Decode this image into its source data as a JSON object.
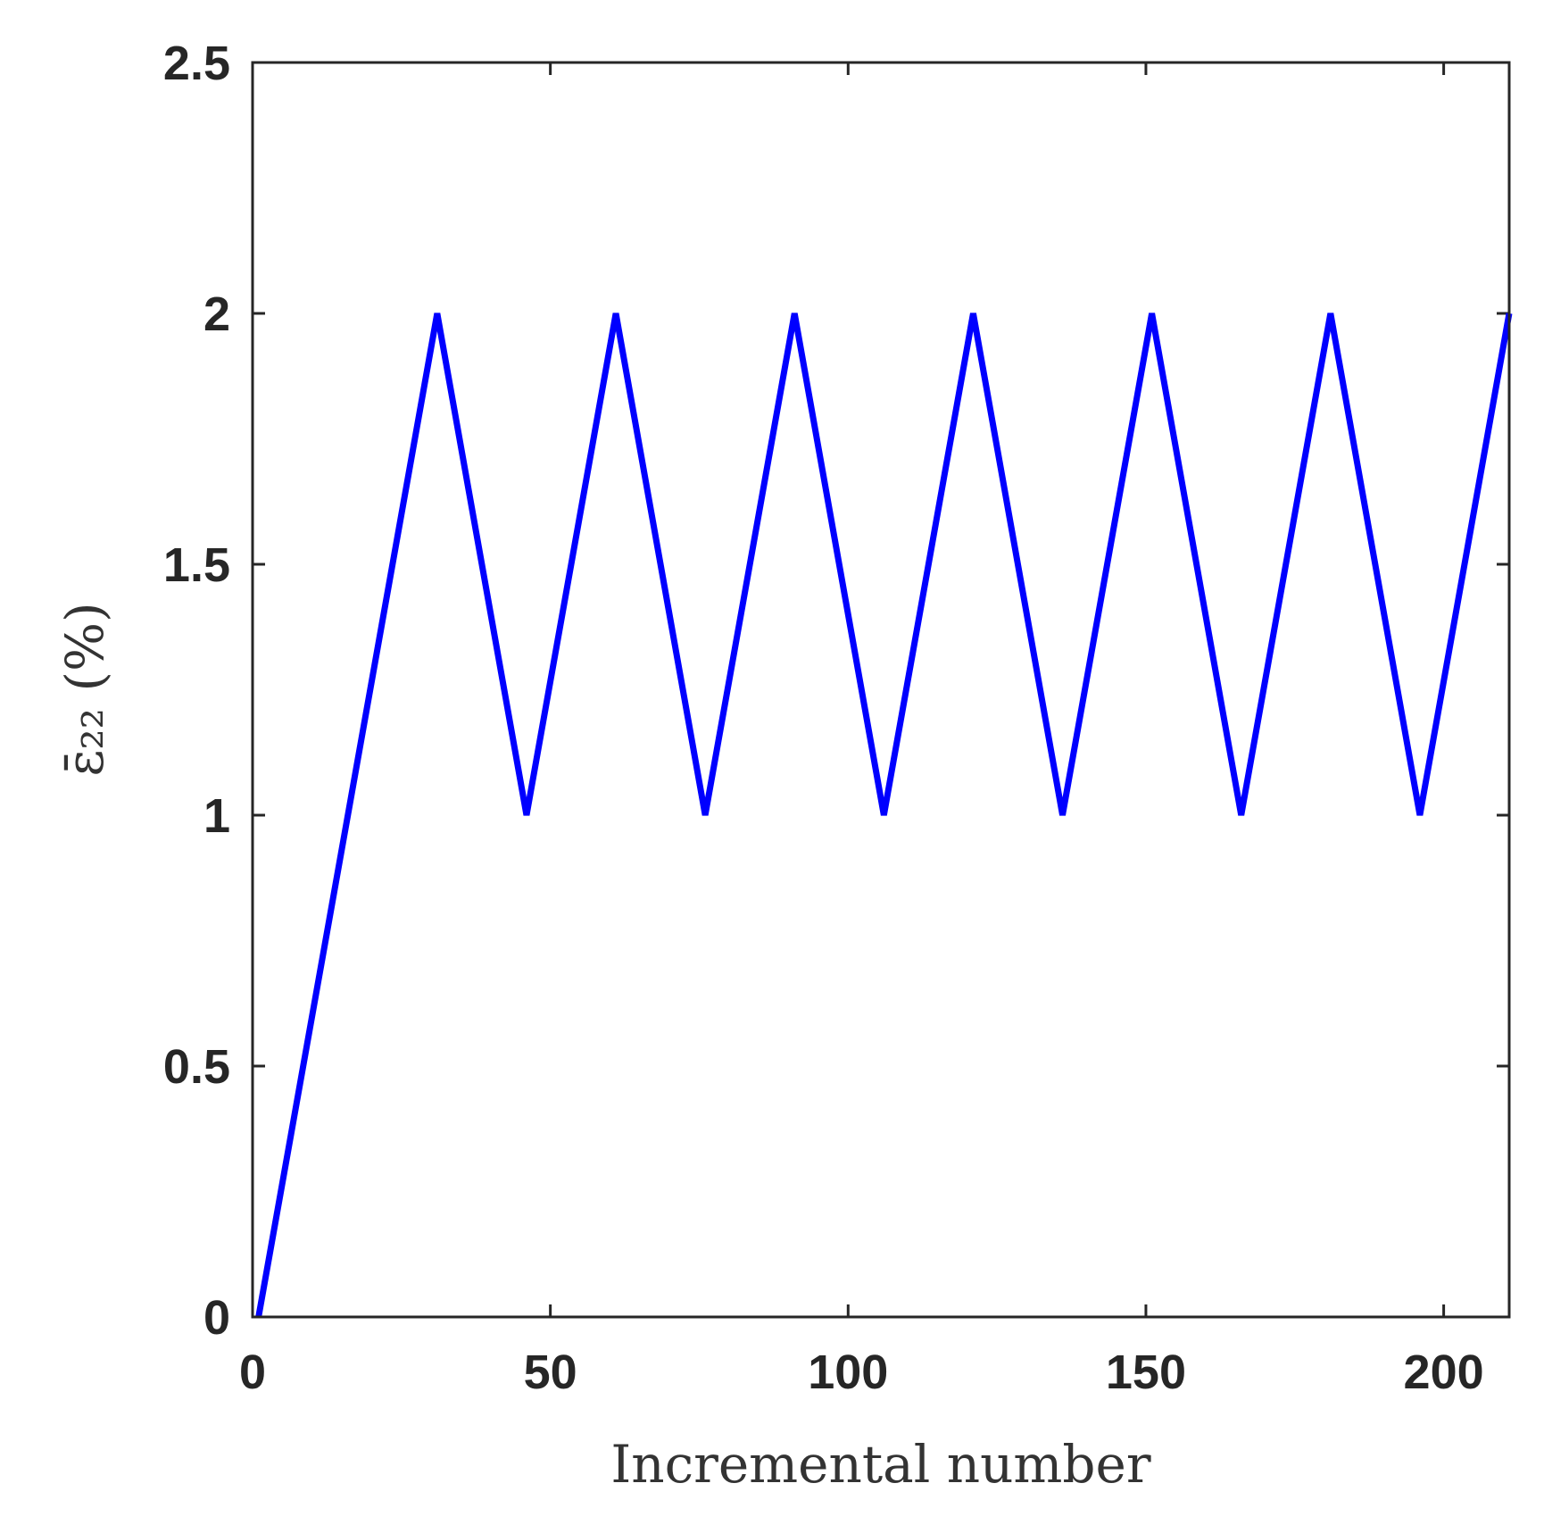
{
  "chart_data": {
    "type": "line",
    "xlabel": "Incremental number",
    "ylabel": "ε̄₂₂ (%)",
    "xlim": [
      0,
      211
    ],
    "ylim": [
      0,
      2.5
    ],
    "xticks": [
      0,
      50,
      100,
      150,
      200
    ],
    "xtick_labels": [
      "0",
      "50",
      "100",
      "150",
      "200"
    ],
    "yticks": [
      0,
      0.5,
      1,
      1.5,
      2,
      2.5
    ],
    "ytick_labels": [
      "0",
      "0.5",
      "1",
      "1.5",
      "2",
      "2.5"
    ],
    "grid": false,
    "series": [
      {
        "color": "#0000ff",
        "x": [
          1,
          31,
          46,
          61,
          76,
          91,
          106,
          121,
          136,
          151,
          166,
          181,
          196,
          211
        ],
        "y": [
          0,
          2,
          1,
          2,
          1,
          2,
          1,
          2,
          1,
          2,
          1,
          2,
          1,
          2
        ]
      }
    ]
  }
}
